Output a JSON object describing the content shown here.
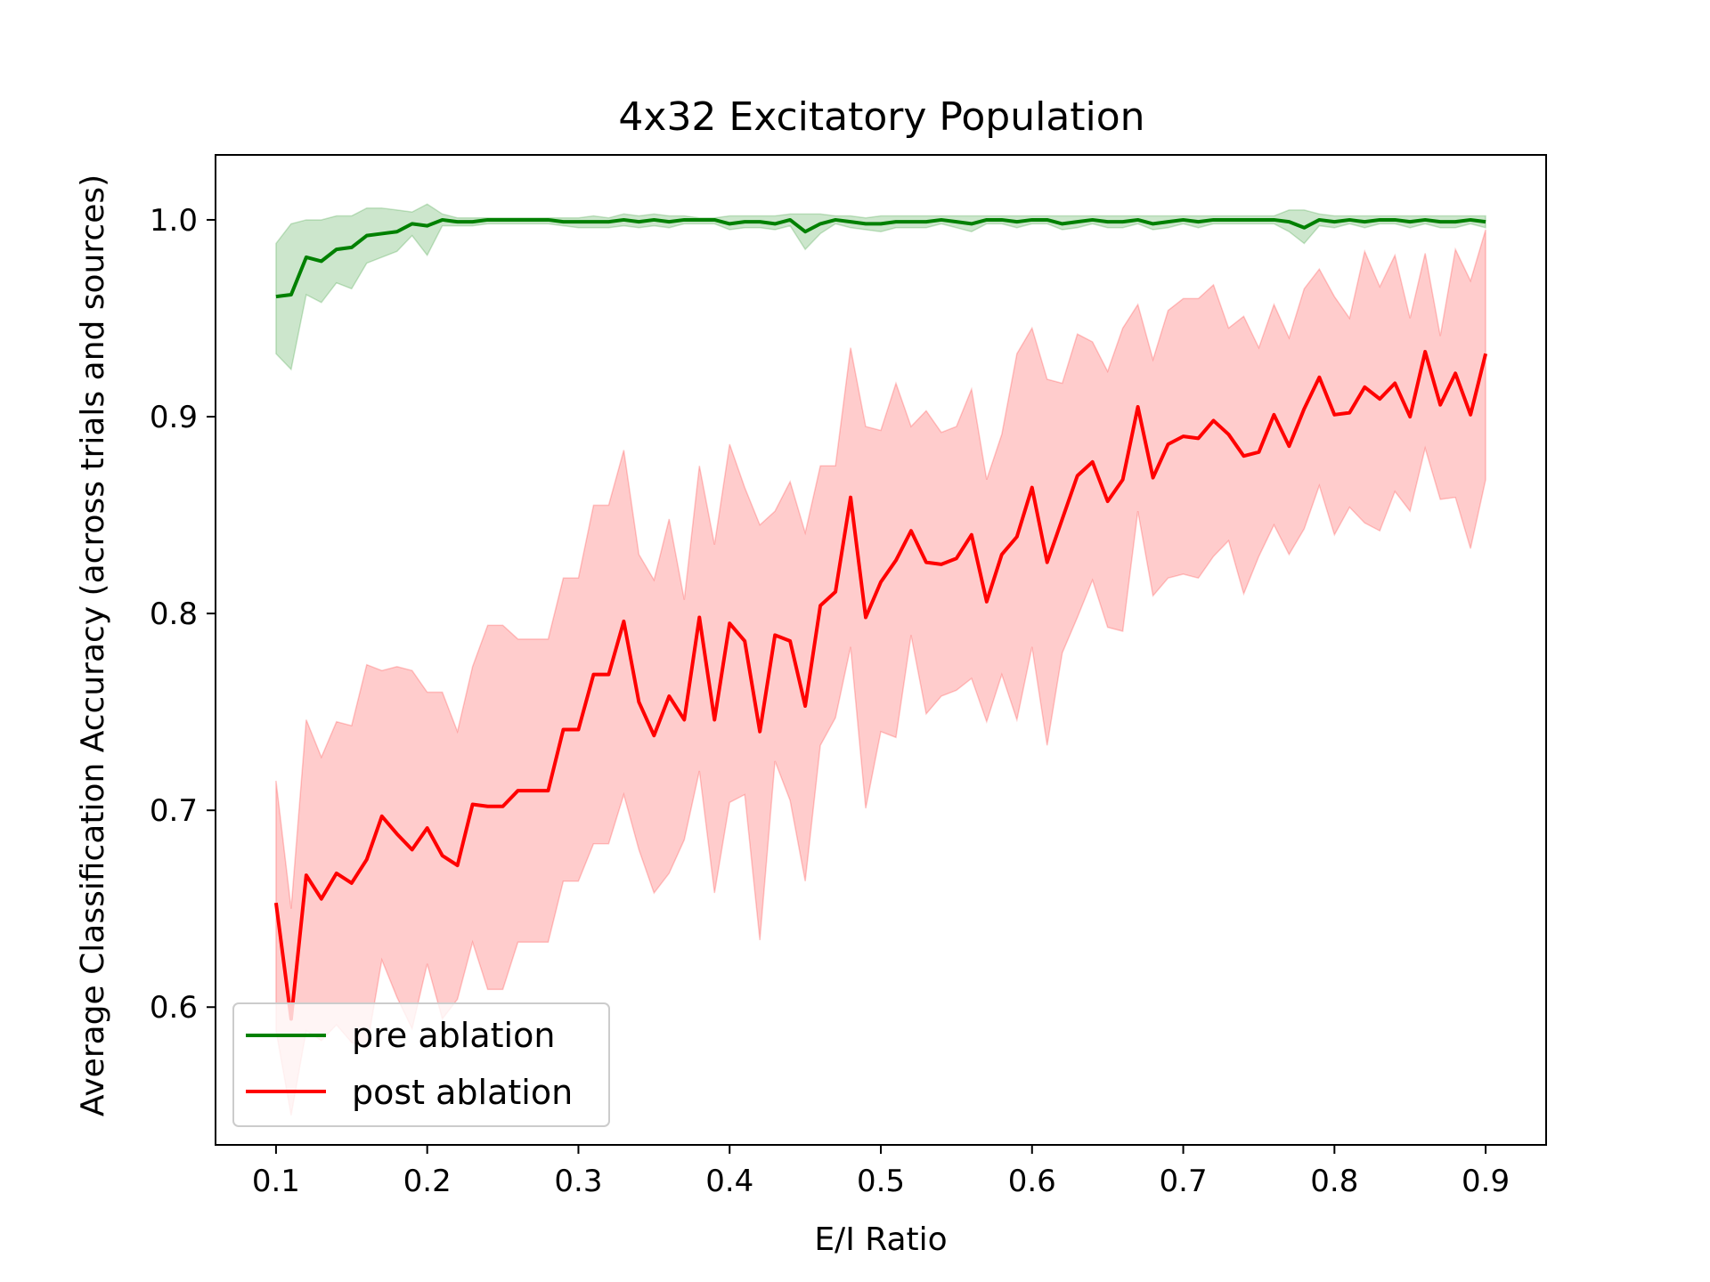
{
  "chart_data": {
    "type": "line",
    "title": "4x32 Excitatory Population",
    "xlabel": "E/I Ratio",
    "ylabel": "Average Classification Accuracy (across trials and sources)",
    "xlim": [
      0.06,
      0.94
    ],
    "ylim": [
      0.53,
      1.033
    ],
    "xticks": [
      0.1,
      0.2,
      0.3,
      0.4,
      0.5,
      0.6,
      0.7,
      0.8,
      0.9
    ],
    "xtick_labels": [
      "0.1",
      "0.2",
      "0.3",
      "0.4",
      "0.5",
      "0.6",
      "0.7",
      "0.8",
      "0.9"
    ],
    "yticks": [
      0.6,
      0.7,
      0.8,
      0.9,
      1.0
    ],
    "ytick_labels": [
      "0.6",
      "0.7",
      "0.8",
      "0.9",
      "1.0"
    ],
    "grid": false,
    "legend_position": "lower-left",
    "x": [
      0.1,
      0.11,
      0.12,
      0.13,
      0.14,
      0.15,
      0.16,
      0.17,
      0.18,
      0.19,
      0.2,
      0.21,
      0.22,
      0.23,
      0.24,
      0.25,
      0.26,
      0.27,
      0.28,
      0.29,
      0.3,
      0.31,
      0.32,
      0.33,
      0.34,
      0.35,
      0.36,
      0.37,
      0.38,
      0.39,
      0.4,
      0.41,
      0.42,
      0.43,
      0.44,
      0.45,
      0.46,
      0.47,
      0.48,
      0.49,
      0.5,
      0.51,
      0.52,
      0.53,
      0.54,
      0.55,
      0.56,
      0.57,
      0.58,
      0.59,
      0.6,
      0.61,
      0.62,
      0.63,
      0.64,
      0.65,
      0.66,
      0.67,
      0.68,
      0.69,
      0.7,
      0.71,
      0.72,
      0.73,
      0.74,
      0.75,
      0.76,
      0.77,
      0.78,
      0.79,
      0.8,
      0.81,
      0.82,
      0.83,
      0.84,
      0.85,
      0.86,
      0.87,
      0.88,
      0.89,
      0.9
    ],
    "series": [
      {
        "name": "pre ablation",
        "color": "#008000",
        "band_color": "#008000",
        "values": [
          0.961,
          0.962,
          0.981,
          0.979,
          0.985,
          0.986,
          0.992,
          0.993,
          0.994,
          0.998,
          0.997,
          1.0,
          0.999,
          0.999,
          1.0,
          1.0,
          1.0,
          1.0,
          1.0,
          0.999,
          0.999,
          0.999,
          0.999,
          1.0,
          0.999,
          1.0,
          0.999,
          1.0,
          1.0,
          1.0,
          0.998,
          0.999,
          0.999,
          0.998,
          1.0,
          0.994,
          0.998,
          1.0,
          0.999,
          0.998,
          0.998,
          0.999,
          0.999,
          0.999,
          1.0,
          0.999,
          0.998,
          1.0,
          1.0,
          0.999,
          1.0,
          1.0,
          0.998,
          0.999,
          1.0,
          0.999,
          0.999,
          1.0,
          0.998,
          0.999,
          1.0,
          0.999,
          1.0,
          1.0,
          1.0,
          1.0,
          1.0,
          0.999,
          0.996,
          1.0,
          0.999,
          1.0,
          0.999,
          1.0,
          1.0,
          0.999,
          1.0,
          0.999,
          0.999,
          1.0,
          0.999
        ],
        "upper": [
          0.988,
          0.998,
          1.0,
          1.0,
          1.002,
          1.002,
          1.006,
          1.006,
          1.005,
          1.004,
          1.008,
          1.003,
          1.001,
          1.001,
          1.001,
          1.001,
          1.001,
          1.001,
          1.001,
          1.001,
          1.001,
          1.002,
          1.001,
          1.003,
          1.002,
          1.003,
          1.002,
          1.002,
          1.001,
          1.001,
          1.002,
          1.002,
          1.002,
          1.002,
          1.003,
          1.003,
          1.003,
          1.002,
          1.002,
          1.001,
          1.002,
          1.002,
          1.002,
          1.002,
          1.002,
          1.002,
          1.002,
          1.002,
          1.002,
          1.002,
          1.002,
          1.002,
          1.002,
          1.002,
          1.002,
          1.002,
          1.002,
          1.002,
          1.002,
          1.002,
          1.002,
          1.002,
          1.002,
          1.002,
          1.002,
          1.002,
          1.002,
          1.005,
          1.005,
          1.003,
          1.002,
          1.002,
          1.002,
          1.002,
          1.002,
          1.002,
          1.002,
          1.002,
          1.002,
          1.002,
          1.002
        ],
        "lower": [
          0.932,
          0.924,
          0.962,
          0.958,
          0.968,
          0.965,
          0.978,
          0.981,
          0.984,
          0.992,
          0.982,
          0.997,
          0.997,
          0.997,
          0.998,
          0.998,
          0.998,
          0.998,
          0.998,
          0.997,
          0.996,
          0.996,
          0.996,
          0.997,
          0.996,
          0.997,
          0.996,
          0.998,
          0.998,
          0.998,
          0.995,
          0.996,
          0.996,
          0.995,
          0.997,
          0.985,
          0.993,
          0.998,
          0.996,
          0.995,
          0.994,
          0.996,
          0.996,
          0.996,
          0.998,
          0.996,
          0.994,
          0.998,
          0.998,
          0.996,
          0.998,
          0.998,
          0.995,
          0.996,
          0.998,
          0.996,
          0.996,
          0.998,
          0.995,
          0.996,
          0.998,
          0.996,
          0.998,
          0.998,
          0.998,
          0.998,
          0.998,
          0.994,
          0.988,
          0.997,
          0.996,
          0.998,
          0.996,
          0.998,
          0.998,
          0.996,
          0.998,
          0.996,
          0.996,
          0.998,
          0.996
        ]
      },
      {
        "name": "post ablation",
        "color": "#ff0000",
        "band_color": "#ff0000",
        "values": [
          0.653,
          0.594,
          0.667,
          0.655,
          0.668,
          0.663,
          0.675,
          0.697,
          0.688,
          0.68,
          0.691,
          0.677,
          0.672,
          0.703,
          0.702,
          0.702,
          0.71,
          0.71,
          0.71,
          0.741,
          0.741,
          0.769,
          0.769,
          0.796,
          0.755,
          0.738,
          0.758,
          0.746,
          0.798,
          0.746,
          0.795,
          0.786,
          0.74,
          0.789,
          0.786,
          0.753,
          0.804,
          0.811,
          0.859,
          0.798,
          0.816,
          0.827,
          0.842,
          0.826,
          0.825,
          0.828,
          0.84,
          0.806,
          0.83,
          0.839,
          0.864,
          0.826,
          0.848,
          0.87,
          0.877,
          0.857,
          0.868,
          0.905,
          0.869,
          0.886,
          0.89,
          0.889,
          0.898,
          0.891,
          0.88,
          0.882,
          0.901,
          0.885,
          0.904,
          0.92,
          0.901,
          0.902,
          0.915,
          0.909,
          0.917,
          0.9,
          0.933,
          0.906,
          0.922,
          0.901,
          0.932
        ],
        "upper": [
          0.715,
          0.65,
          0.746,
          0.727,
          0.745,
          0.743,
          0.774,
          0.771,
          0.773,
          0.771,
          0.76,
          0.76,
          0.74,
          0.773,
          0.794,
          0.794,
          0.787,
          0.787,
          0.787,
          0.818,
          0.818,
          0.855,
          0.855,
          0.883,
          0.83,
          0.817,
          0.848,
          0.807,
          0.875,
          0.835,
          0.886,
          0.864,
          0.845,
          0.852,
          0.867,
          0.841,
          0.875,
          0.875,
          0.935,
          0.895,
          0.893,
          0.917,
          0.895,
          0.903,
          0.892,
          0.895,
          0.914,
          0.868,
          0.891,
          0.932,
          0.945,
          0.919,
          0.917,
          0.942,
          0.938,
          0.923,
          0.945,
          0.957,
          0.929,
          0.954,
          0.96,
          0.96,
          0.967,
          0.945,
          0.951,
          0.935,
          0.957,
          0.94,
          0.965,
          0.975,
          0.961,
          0.95,
          0.984,
          0.966,
          0.982,
          0.95,
          0.983,
          0.941,
          0.985,
          0.969,
          0.995
        ],
        "lower": [
          0.588,
          0.545,
          0.588,
          0.583,
          0.591,
          0.582,
          0.579,
          0.624,
          0.605,
          0.589,
          0.622,
          0.594,
          0.604,
          0.633,
          0.609,
          0.609,
          0.633,
          0.633,
          0.633,
          0.664,
          0.664,
          0.683,
          0.683,
          0.708,
          0.68,
          0.658,
          0.668,
          0.685,
          0.72,
          0.658,
          0.704,
          0.708,
          0.634,
          0.725,
          0.705,
          0.664,
          0.733,
          0.747,
          0.783,
          0.701,
          0.74,
          0.737,
          0.789,
          0.749,
          0.758,
          0.761,
          0.767,
          0.745,
          0.769,
          0.746,
          0.783,
          0.733,
          0.78,
          0.798,
          0.817,
          0.793,
          0.791,
          0.852,
          0.809,
          0.818,
          0.82,
          0.818,
          0.829,
          0.837,
          0.81,
          0.829,
          0.845,
          0.83,
          0.843,
          0.865,
          0.84,
          0.854,
          0.846,
          0.842,
          0.862,
          0.852,
          0.884,
          0.858,
          0.859,
          0.833,
          0.868
        ]
      }
    ]
  }
}
